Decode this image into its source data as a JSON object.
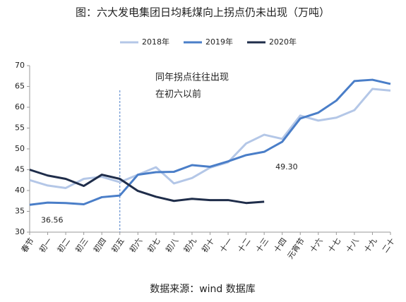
{
  "chart_data": {
    "type": "line",
    "title": "图：六大发电集团日均耗煤向上拐点仍未出现（万吨）",
    "annotation": [
      "同年拐点往往出现",
      "在初六以前"
    ],
    "source": "数据来源：wind 数据库",
    "categories": [
      "春节",
      "初一",
      "初二",
      "初三",
      "初四",
      "初五",
      "初六",
      "初七",
      "初八",
      "初九",
      "初十",
      "十一",
      "十二",
      "十三",
      "十四",
      "元宵节",
      "十六",
      "十七",
      "十八",
      "十九",
      "二十"
    ],
    "series": [
      {
        "name": "2018年",
        "color": "#b4c7e7",
        "values": [
          42.5,
          41.2,
          40.6,
          42.8,
          43.3,
          42.0,
          43.8,
          45.6,
          41.7,
          43.0,
          45.5,
          46.8,
          51.3,
          53.4,
          52.4,
          58.0,
          56.8,
          57.5,
          59.3,
          64.4,
          64.0
        ]
      },
      {
        "name": "2019年",
        "color": "#4a7ec8",
        "values": [
          36.56,
          37.1,
          37.0,
          36.7,
          38.4,
          38.8,
          43.8,
          44.4,
          44.5,
          46.1,
          45.7,
          47.0,
          48.5,
          49.3,
          51.7,
          57.3,
          58.7,
          61.6,
          66.3,
          66.6,
          65.6
        ],
        "value_labels": [
          "36.56",
          null,
          null,
          null,
          null,
          null,
          null,
          null,
          null,
          null,
          null,
          null,
          null,
          "49.30",
          null,
          null,
          null,
          null,
          null,
          null,
          null
        ]
      },
      {
        "name": "2020年",
        "color": "#1f2d4a",
        "values": [
          45.0,
          43.6,
          42.8,
          41.1,
          43.8,
          42.8,
          39.9,
          38.5,
          37.5,
          38.0,
          37.7,
          37.7,
          37.0,
          37.3,
          null,
          null,
          null,
          null,
          null,
          null,
          null
        ]
      }
    ],
    "ylim": [
      30,
      70
    ],
    "yticks": [
      30,
      35,
      40,
      45,
      50,
      55,
      60,
      65,
      70
    ],
    "grid": false,
    "legend": "top"
  }
}
